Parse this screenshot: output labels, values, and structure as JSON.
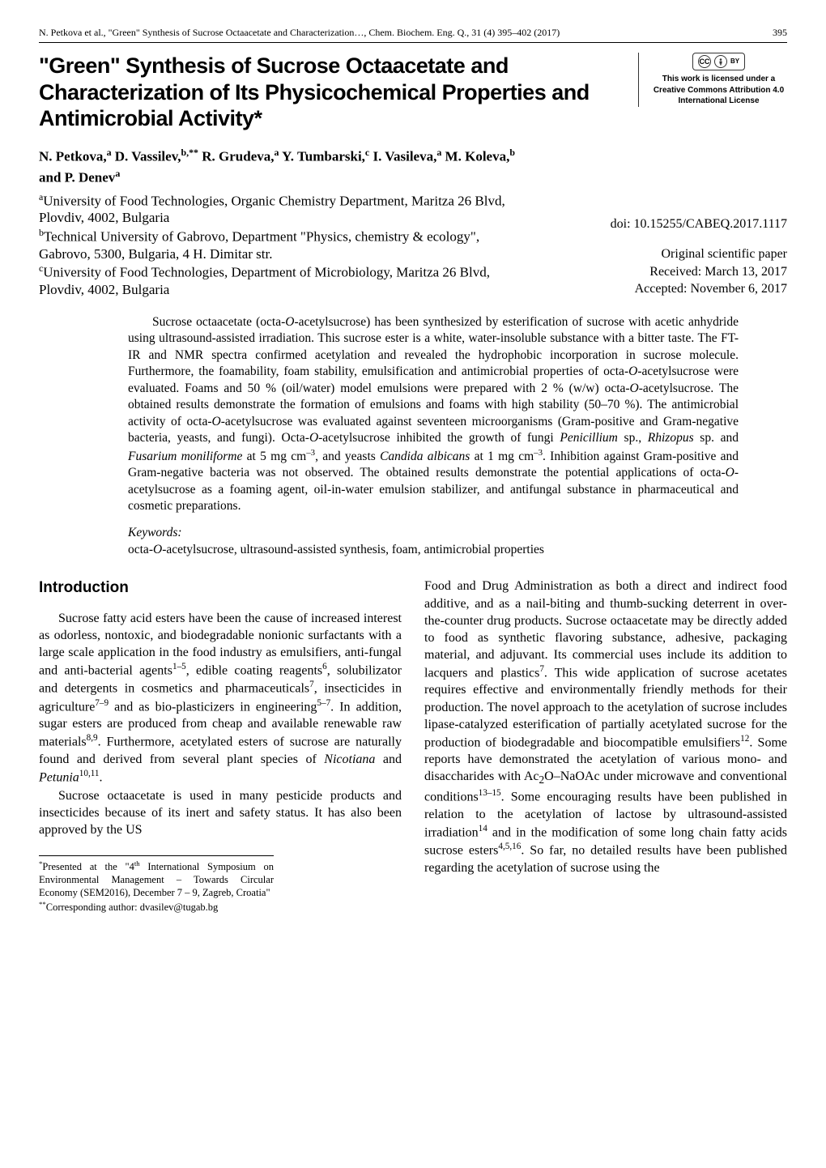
{
  "running_header": {
    "left": "N. Petkova et al., \"Green\" Synthesis of Sucrose Octaacetate and Characterization…, Chem. Biochem. Eng. Q., 31 (4) 395–402 (2017)",
    "page_number": "395"
  },
  "title": "\"Green\" Synthesis of Sucrose Octaacetate and Characterization of Its Physicochemical Properties and Antimicrobial Activity*",
  "license": {
    "cc_text": "CC",
    "by_text": "BY",
    "line1": "This work is licensed under a",
    "line2": "Creative Commons Attribution 4.0",
    "line3": "International License"
  },
  "authors_html": "N. Petkova,<sup>a</sup> D. Vassilev,<sup>b,**</sup> R. Grudeva,<sup>a</sup> Y. Tumbarski,<sup>c</sup> I. Vasileva,<sup>a</sup> M. Koleva,<sup>b</sup> and P. Denev<sup>a</sup>",
  "affiliations_html": "<sup>a</sup>University of Food Technologies, Organic Chemistry Department, Maritza 26 Blvd, Plovdiv, 4002, Bulgaria<br><sup>b</sup>Technical University of Gabrovo, Department \"Physics, chemistry & ecology\", Gabrovo, 5300, Bulgaria, 4 H. Dimitar str.<br><sup>c</sup>University of Food Technologies, Department of Microbiology, Maritza 26 Blvd, Plovdiv, 4002, Bulgaria",
  "doi": "doi: 10.15255/CABEQ.2017.1117",
  "article_type": "Original scientific paper",
  "received": "Received: March 13, 2017",
  "accepted": "Accepted: November 6, 2017",
  "abstract_html": "Sucrose octaacetate (octa-<span class=\"ital\">O</span>-acetylsucrose) has been synthesized by esterification of sucrose with acetic anhydride using ultrasound-assisted irradiation. This sucrose ester is a white, water-insoluble substance with a bitter taste. The FT-IR and NMR spectra confirmed acetylation and revealed the hydrophobic incorporation in sucrose molecule. Furthermore, the foamability, foam stability, emulsification and antimicrobial properties of octa-<span class=\"ital\">O</span>-acetylsucrose were evaluated. Foams and 50 % (oil/water) model emulsions were prepared with 2 % (w/w) octa-<span class=\"ital\">O</span>-acetylsucrose. The obtained results demonstrate the formation of emulsions and foams with high stability (50–70 %). The antimicrobial activity of octa-<span class=\"ital\">O</span>-acetylsucrose was evaluated against seventeen microorganisms (Gram-positive and Gram-negative bacteria, yeasts, and fungi). Octa-<span class=\"ital\">O</span>-acetylsucrose inhibited the growth of fungi <span class=\"ital\">Penicillium</span> sp., <span class=\"ital\">Rhizopus</span> sp. and <span class=\"ital\">Fusarium moniliforme</span> at 5 mg cm<sup>–3</sup>, and yeasts <span class=\"ital\">Candida albicans</span> at 1 mg cm<sup>–3</sup>. Inhibition against Gram-positive and Gram-negative bacteria was not observed. The obtained results demonstrate the potential applications of octa-<span class=\"ital\">O</span>-acetylsucrose as a foaming agent, oil-in-water emulsion stabilizer, and antifungal substance in pharmaceutical and cosmetic preparations.",
  "keywords_label": "Keywords:",
  "keywords_html": "octa-<span class=\"ital\">O</span>-acetylsucrose, ultrasound-assisted synthesis, foam, antimicrobial properties",
  "section_heading": "Introduction",
  "col_left": {
    "para1_html": "Sucrose fatty acid esters have been the cause of increased interest as odorless, nontoxic, and biodegradable nonionic surfactants with a large scale application in the food industry as emulsifiers, anti-fungal and anti-bacterial agents<sup>1–5</sup>, edible coating reagents<sup>6</sup>, solubilizator and detergents in cosmetics and pharmaceuticals<sup>7</sup>, insecticides in agriculture<sup>7–9</sup> and as bio-plasticizers in engineering<sup>5–7</sup>. In addition, sugar esters are produced from cheap and available renewable raw materials<sup>8,9</sup>. Furthermore, acetylated esters of sucrose are naturally found and derived from several plant species of <span class=\"ital\">Nicotiana</span> and <span class=\"ital\">Petunia</span><sup>10,11</sup>.",
    "para2_html": "Sucrose octaacetate is used in many pesticide products and insecticides because of its inert and safety status. It has also been approved by the US"
  },
  "col_right": {
    "para1_html": "Food and Drug Administration as both a direct and indirect food additive, and as a nail-biting and thumb-sucking deterrent in over-the-counter drug products. Sucrose octaacetate may be directly added to food as synthetic flavoring substance, adhesive, packaging material, and adjuvant. Its commercial uses include its addition to lacquers and plastics<sup>7</sup>. This wide application of sucrose acetates requires effective and environmentally friendly methods for their production. The novel approach to the acetylation of sucrose includes lipase-catalyzed esterification of partially acetylated sucrose for the production of biodegradable and biocompatible emulsifiers<sup>12</sup>. Some reports have demonstrated the acetylation of various mono- and disaccharides with Ac<sub>2</sub>O–NaOAc under microwave and conventional conditions<sup>13–15</sup>. Some encouraging results have been published in relation to the acetylation of lactose by ultrasound-assisted irradiation<sup>14</sup> and in the modification of some long chain fatty acids sucrose esters<sup>4,5,16</sup>. So far, no detailed results have been published regarding the acetylation of sucrose using the"
  },
  "footnotes": {
    "line1_html": "<sup>*</sup>Presented at the \"4<sup>th</sup> International Symposium on Environmental Management – Towards Circular Economy (SEM2016), December 7 – 9, Zagreb, Croatia\"",
    "line2_html": "<sup>**</sup>Corresponding author: dvasilev@tugab.bg"
  },
  "colors": {
    "text": "#000000",
    "background": "#ffffff",
    "rule": "#000000",
    "license_border": "#333333"
  }
}
